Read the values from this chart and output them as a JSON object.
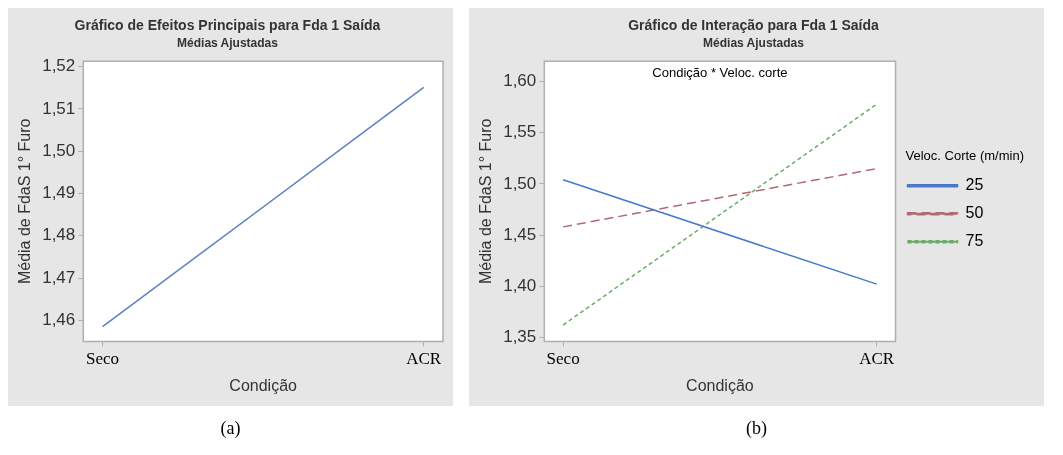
{
  "chart_data": [
    {
      "type": "line",
      "title": "Gráfico de Efeitos Principais para Fda 1 Saída",
      "subtitle": "Médias Ajustadas",
      "xlabel": "Condição",
      "ylabel": "Média de FdaS 1° Furo",
      "categories": [
        "Seco",
        "ACR"
      ],
      "series": [
        {
          "color": "#5b7fc0",
          "values": [
            1.4585,
            1.5151
          ],
          "line_style": "solid"
        }
      ],
      "ylim": [
        1.455,
        1.5213
      ],
      "yticks": [
        {
          "value": 1.46,
          "label": "1,46"
        },
        {
          "value": 1.47,
          "label": "1,47"
        },
        {
          "value": 1.48,
          "label": "1,48"
        },
        {
          "value": 1.49,
          "label": "1,49"
        },
        {
          "value": 1.5,
          "label": "1,50"
        },
        {
          "value": 1.51,
          "label": "1,51"
        },
        {
          "value": 1.52,
          "label": "1,52"
        }
      ],
      "grid": false,
      "legend": false,
      "marker": "none",
      "annotations": [
        "(a)"
      ]
    },
    {
      "type": "line",
      "title": "Gráfico de Interação para Fda 1 Saída",
      "subtitle": "Médias Ajustadas",
      "xlabel": "Condição",
      "ylabel": "Média de FdaS 1° Furo",
      "categories": [
        "Seco",
        "ACR"
      ],
      "legend_title": "Veloc. Corte (m/min)",
      "series": [
        {
          "name": "25",
          "color": "#4a78c8",
          "values": [
            1.504,
            1.402
          ],
          "line_style": "solid"
        },
        {
          "name": "50",
          "color": "#b06a70",
          "values": [
            1.458,
            1.515
          ],
          "line_style": "dashed"
        },
        {
          "name": "75",
          "color": "#6aaa6a",
          "values": [
            1.362,
            1.578
          ],
          "line_style": "dotted"
        }
      ],
      "ylim": [
        1.346,
        1.62
      ],
      "yticks": [
        {
          "value": 1.35,
          "label": "1,35"
        },
        {
          "value": 1.4,
          "label": "1,40"
        },
        {
          "value": 1.45,
          "label": "1,45"
        },
        {
          "value": 1.5,
          "label": "1,50"
        },
        {
          "value": 1.55,
          "label": "1,55"
        },
        {
          "value": 1.6,
          "label": "1,60"
        }
      ],
      "grid": false,
      "legend": "right",
      "marker": "none",
      "annotations": [
        "Condição * Veloc. corte",
        "(b)"
      ]
    }
  ]
}
